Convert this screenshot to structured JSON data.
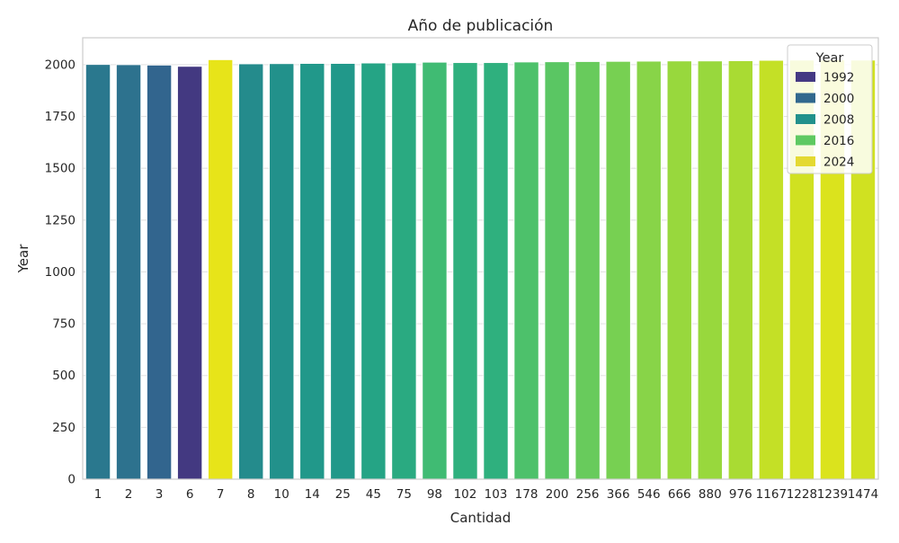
{
  "chart_data": {
    "type": "bar",
    "title": "Año de publicación",
    "xlabel": "Cantidad",
    "ylabel": "Year",
    "categories": [
      "1",
      "2",
      "3",
      "6",
      "7",
      "8",
      "10",
      "14",
      "25",
      "45",
      "75",
      "98",
      "102",
      "103",
      "178",
      "200",
      "256",
      "366",
      "546",
      "666",
      "880",
      "976",
      "1167",
      "1228",
      "1239",
      "1474"
    ],
    "values": [
      2001,
      2000,
      1998,
      1992,
      2024,
      2004,
      2005,
      2006,
      2006,
      2008,
      2009,
      2012,
      2010,
      2010,
      2013,
      2014,
      2015,
      2016,
      2017,
      2018,
      2018,
      2019,
      2021,
      2022,
      2023,
      2022
    ],
    "ylim": [
      0,
      2130
    ],
    "yticks": [
      0,
      250,
      500,
      750,
      1000,
      1250,
      1500,
      1750,
      2000
    ],
    "grid": "horizontal",
    "colormap": "viridis",
    "hue_range": [
      1992,
      2024
    ],
    "legend": {
      "title": "Year",
      "placement": "top-right",
      "entries": [
        "1992",
        "2000",
        "2008",
        "2016",
        "2024"
      ]
    },
    "legend_colors": [
      "#443983",
      "#31688e",
      "#21918c",
      "#5ec962",
      "#e4d932"
    ]
  }
}
